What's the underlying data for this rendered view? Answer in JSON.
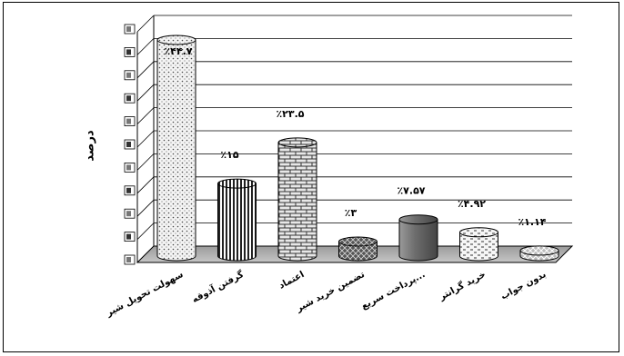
{
  "chart_data": {
    "type": "bar",
    "bar_style": "3d-cylinder",
    "grid": true,
    "ylabel": "درصد",
    "ylim": [
      0,
      50
    ],
    "categories": [
      "سهولت تحویل شیر",
      "گرفتن آذوقه",
      "اعتماد",
      "تضمین خرید شیر",
      "پرداخت سریع...",
      "خرید گرانتر",
      "بدون جواب"
    ],
    "values": [
      44.7,
      15,
      23.5,
      3,
      7.57,
      4.92,
      1.14
    ],
    "data_labels": [
      "٪۴۴.۷",
      "٪۱۵",
      "٪۲۳.۵",
      "٪۳",
      "٪۷.۵۷",
      "٪۴.۹۲",
      "٪۱.۱۴"
    ],
    "patterns": [
      "dots",
      "vertical-stripes",
      "bricks",
      "diamond-mesh",
      "solid-gray",
      "dashes",
      "diagonal-mesh"
    ],
    "colors": {
      "axis": "#000000",
      "floor": "#b0b0b0",
      "text": "#000000"
    }
  }
}
